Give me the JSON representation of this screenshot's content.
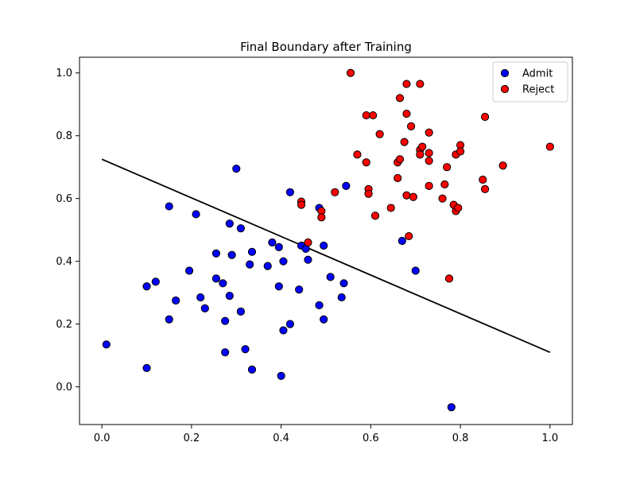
{
  "chart_data": {
    "type": "scatter",
    "title": "Final Boundary after Training",
    "xlabel": "",
    "ylabel": "",
    "xlim": [
      -0.05,
      1.05
    ],
    "ylim": [
      -0.12,
      1.05
    ],
    "xticks": [
      0.0,
      0.2,
      0.4,
      0.6,
      0.8,
      1.0
    ],
    "yticks": [
      0.0,
      0.2,
      0.4,
      0.6,
      0.8,
      1.0
    ],
    "xtick_labels": [
      "0.0",
      "0.2",
      "0.4",
      "0.6",
      "0.8",
      "1.0"
    ],
    "ytick_labels": [
      "0.0",
      "0.2",
      "0.4",
      "0.6",
      "0.8",
      "1.0"
    ],
    "grid": false,
    "legend_position": "top-right",
    "series": [
      {
        "name": "Admit",
        "color": "#0000ff",
        "points": [
          [
            0.01,
            0.135
          ],
          [
            0.1,
            0.06
          ],
          [
            0.1,
            0.32
          ],
          [
            0.12,
            0.335
          ],
          [
            0.15,
            0.575
          ],
          [
            0.15,
            0.215
          ],
          [
            0.165,
            0.275
          ],
          [
            0.195,
            0.37
          ],
          [
            0.21,
            0.55
          ],
          [
            0.22,
            0.285
          ],
          [
            0.23,
            0.25
          ],
          [
            0.255,
            0.345
          ],
          [
            0.255,
            0.425
          ],
          [
            0.27,
            0.33
          ],
          [
            0.275,
            0.21
          ],
          [
            0.275,
            0.11
          ],
          [
            0.285,
            0.52
          ],
          [
            0.285,
            0.29
          ],
          [
            0.29,
            0.42
          ],
          [
            0.3,
            0.695
          ],
          [
            0.31,
            0.505
          ],
          [
            0.31,
            0.24
          ],
          [
            0.32,
            0.12
          ],
          [
            0.33,
            0.39
          ],
          [
            0.335,
            0.43
          ],
          [
            0.335,
            0.055
          ],
          [
            0.37,
            0.385
          ],
          [
            0.38,
            0.46
          ],
          [
            0.395,
            0.445
          ],
          [
            0.395,
            0.32
          ],
          [
            0.4,
            0.035
          ],
          [
            0.405,
            0.4
          ],
          [
            0.405,
            0.18
          ],
          [
            0.42,
            0.62
          ],
          [
            0.42,
            0.2
          ],
          [
            0.44,
            0.31
          ],
          [
            0.445,
            0.45
          ],
          [
            0.455,
            0.44
          ],
          [
            0.46,
            0.405
          ],
          [
            0.485,
            0.57
          ],
          [
            0.485,
            0.26
          ],
          [
            0.495,
            0.215
          ],
          [
            0.495,
            0.45
          ],
          [
            0.51,
            0.35
          ],
          [
            0.535,
            0.285
          ],
          [
            0.54,
            0.33
          ],
          [
            0.545,
            0.64
          ],
          [
            0.67,
            0.465
          ],
          [
            0.7,
            0.37
          ],
          [
            0.78,
            -0.065
          ]
        ]
      },
      {
        "name": "Reject",
        "color": "#ff0000",
        "points": [
          [
            0.445,
            0.59
          ],
          [
            0.445,
            0.58
          ],
          [
            0.46,
            0.46
          ],
          [
            0.49,
            0.56
          ],
          [
            0.49,
            0.54
          ],
          [
            0.52,
            0.62
          ],
          [
            0.555,
            1.0
          ],
          [
            0.57,
            0.74
          ],
          [
            0.59,
            0.715
          ],
          [
            0.59,
            0.865
          ],
          [
            0.595,
            0.63
          ],
          [
            0.595,
            0.615
          ],
          [
            0.605,
            0.865
          ],
          [
            0.61,
            0.545
          ],
          [
            0.62,
            0.805
          ],
          [
            0.645,
            0.57
          ],
          [
            0.66,
            0.665
          ],
          [
            0.66,
            0.715
          ],
          [
            0.665,
            0.725
          ],
          [
            0.665,
            0.92
          ],
          [
            0.675,
            0.78
          ],
          [
            0.68,
            0.61
          ],
          [
            0.68,
            0.965
          ],
          [
            0.68,
            0.87
          ],
          [
            0.685,
            0.48
          ],
          [
            0.69,
            0.83
          ],
          [
            0.695,
            0.605
          ],
          [
            0.71,
            0.755
          ],
          [
            0.71,
            0.74
          ],
          [
            0.71,
            0.965
          ],
          [
            0.715,
            0.765
          ],
          [
            0.73,
            0.81
          ],
          [
            0.73,
            0.745
          ],
          [
            0.73,
            0.72
          ],
          [
            0.73,
            0.64
          ],
          [
            0.76,
            0.6
          ],
          [
            0.765,
            0.645
          ],
          [
            0.77,
            0.7
          ],
          [
            0.775,
            0.345
          ],
          [
            0.785,
            0.58
          ],
          [
            0.79,
            0.56
          ],
          [
            0.79,
            0.74
          ],
          [
            0.795,
            0.57
          ],
          [
            0.8,
            0.77
          ],
          [
            0.8,
            0.75
          ],
          [
            0.85,
            0.66
          ],
          [
            0.855,
            0.86
          ],
          [
            0.855,
            0.63
          ],
          [
            0.895,
            0.705
          ],
          [
            1.0,
            0.765
          ]
        ]
      }
    ],
    "lines": [
      {
        "color": "#000000",
        "points": [
          [
            0.0,
            0.725
          ],
          [
            1.0,
            0.11
          ]
        ]
      }
    ]
  }
}
